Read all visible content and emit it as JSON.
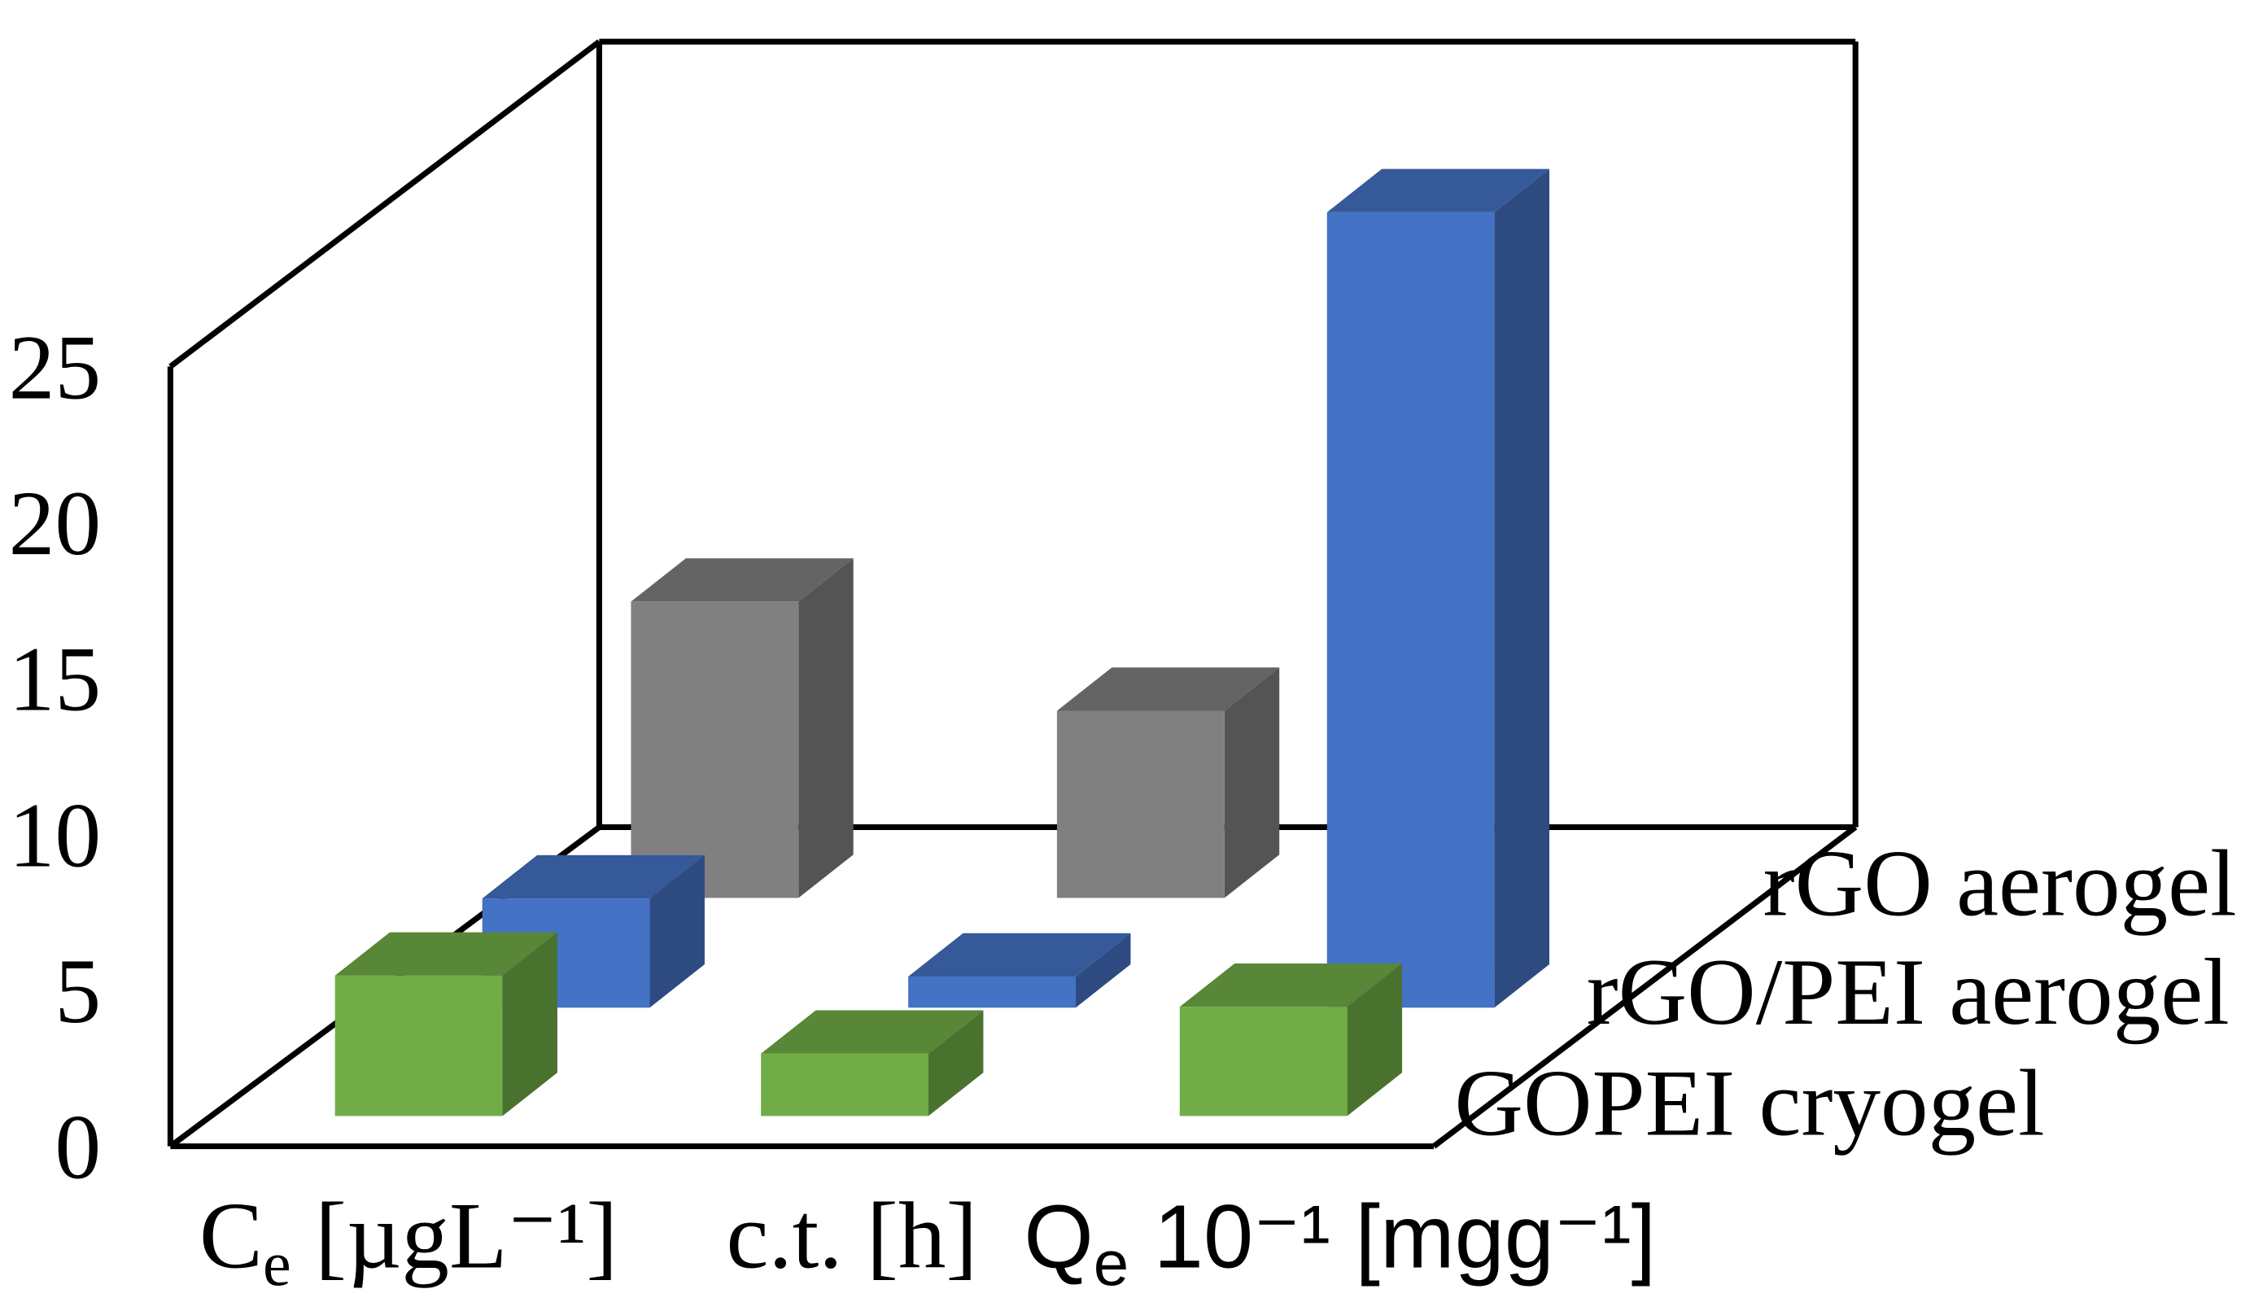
{
  "chart_data": {
    "type": "bar3d",
    "categories": [
      {
        "base": "C",
        "sub": "e",
        "rest": " [µgL⁻¹]",
        "font": "serif"
      },
      {
        "base": "c.t. [h]",
        "sub": "",
        "rest": "",
        "font": "serif"
      },
      {
        "base": "Q",
        "sub": "e",
        "rest": " 10⁻¹ [mgg⁻¹]",
        "font": "sans"
      }
    ],
    "series": [
      {
        "name": "GOPEI cryogel",
        "color": "#70ad47",
        "values": [
          4.5,
          2,
          3.5
        ]
      },
      {
        "name": "rGO/PEI aerogel",
        "color": "#4472c4",
        "values": [
          3.5,
          1,
          25.5
        ]
      },
      {
        "name": "rGO aerogel",
        "color": "#808080",
        "values": [
          9.5,
          6,
          0
        ]
      }
    ],
    "yaxis": {
      "min": 0,
      "max": 25,
      "ticks": [
        0,
        5,
        10,
        15,
        20,
        25
      ]
    },
    "grid": false
  }
}
